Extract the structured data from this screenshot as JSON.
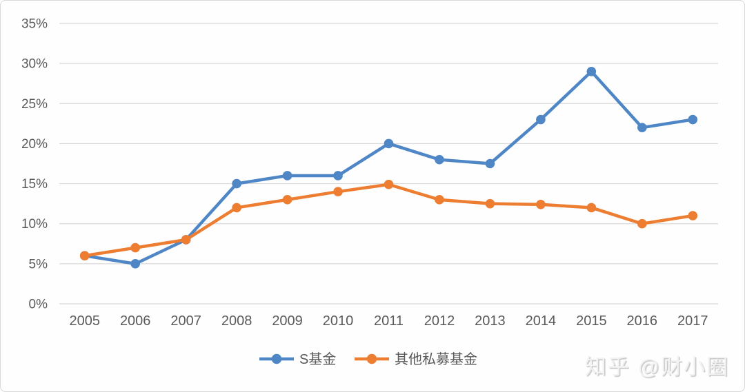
{
  "chart_data": {
    "type": "line",
    "title": "",
    "xlabel": "",
    "ylabel": "",
    "categories": [
      "2005",
      "2006",
      "2007",
      "2008",
      "2009",
      "2010",
      "2011",
      "2012",
      "2013",
      "2014",
      "2015",
      "2016",
      "2017"
    ],
    "series": [
      {
        "name": "S基金",
        "color": "#4e86c6",
        "values": [
          6,
          5,
          8,
          15,
          16,
          16,
          20,
          18,
          17.5,
          23,
          29,
          22,
          23
        ]
      },
      {
        "name": "其他私募基金",
        "color": "#ed7d31",
        "values": [
          6,
          7,
          8,
          12,
          13,
          14,
          14.9,
          13,
          12.5,
          12.4,
          12,
          10,
          11
        ]
      }
    ],
    "ylim": [
      0,
      35
    ],
    "yticks": [
      35,
      30,
      25,
      20,
      15,
      10,
      5,
      0
    ],
    "ytick_labels": [
      "35%",
      "30%",
      "25%",
      "20%",
      "15%",
      "10%",
      "5%",
      "0%"
    ],
    "grid": true,
    "legend_position": "bottom"
  },
  "watermark": {
    "text": "知乎 @财小圈"
  },
  "colors": {
    "grid": "#d9d9d9",
    "axis_text": "#595959",
    "series_blue": "#4e86c6",
    "series_orange": "#ed7d31",
    "background": "#fefefe",
    "border": "#d8d8d8",
    "watermark_text": "#f2f2f2"
  }
}
